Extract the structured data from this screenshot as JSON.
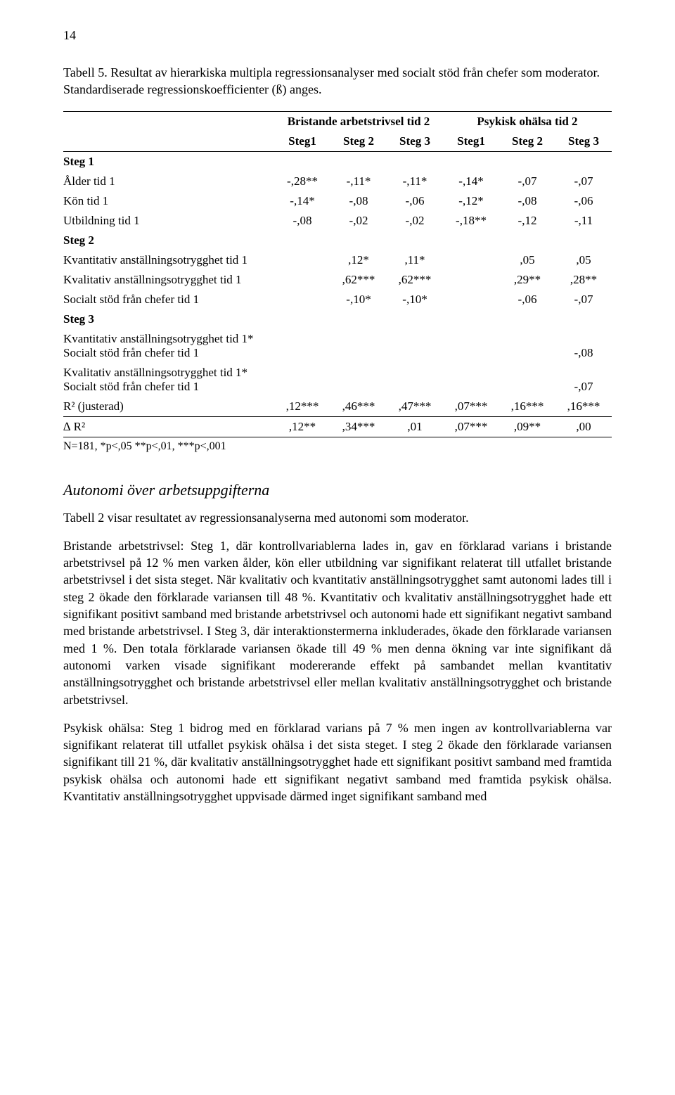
{
  "page_number": "14",
  "caption": "Tabell 5. Resultat av hierarkiska multipla regressionsanalyser med socialt stöd från chefer som moderator. Standardiserade regressionskoefficienter (ß) anges.",
  "group_headers": {
    "left": "Bristande arbetstrivsel tid 2",
    "right": "Psykisk ohälsa tid 2"
  },
  "col_headers": [
    "Steg1",
    "Steg 2",
    "Steg 3",
    "Steg1",
    "Steg 2",
    "Steg 3"
  ],
  "step1_label": "Steg 1",
  "rows_step1": [
    {
      "label": "Ålder tid 1",
      "v": [
        "-,28**",
        "-,11*",
        "-,11*",
        "-,14*",
        "-,07",
        "-,07"
      ]
    },
    {
      "label": "Kön tid 1",
      "v": [
        "-,14*",
        "-,08",
        "-,06",
        "-,12*",
        "-,08",
        "-,06"
      ]
    },
    {
      "label": "Utbildning tid 1",
      "v": [
        "-,08",
        "-,02",
        "-,02",
        "-,18**",
        "-,12",
        "-,11"
      ]
    }
  ],
  "step2_label": "Steg 2",
  "rows_step2": [
    {
      "label": "Kvantitativ anställningsotrygghet tid 1",
      "v": [
        "",
        ",12*",
        ",11*",
        "",
        ",05",
        ",05"
      ]
    },
    {
      "label": "Kvalitativ anställningsotrygghet tid 1",
      "v": [
        "",
        ",62***",
        ",62***",
        "",
        ",29**",
        ",28**"
      ]
    },
    {
      "label": "Socialt stöd från chefer tid 1",
      "v": [
        "",
        "-,10*",
        "-,10*",
        "",
        "-,06",
        "-,07"
      ]
    }
  ],
  "step3_label": "Steg 3",
  "rows_step3": [
    {
      "label": "Kvantitativ anställningsotrygghet tid 1* Socialt stöd från chefer tid 1",
      "v": [
        "",
        "",
        "",
        "",
        "",
        "-,08"
      ]
    },
    {
      "label": "Kvalitativ anställningsotrygghet tid 1* Socialt stöd från chefer tid 1",
      "v": [
        "",
        "",
        "",
        "",
        "",
        "-,07"
      ]
    }
  ],
  "rows_fit": [
    {
      "label": "R² (justerad)",
      "v": [
        ",12***",
        ",46***",
        ",47***",
        ",07***",
        ",16***",
        ",16***"
      ]
    },
    {
      "label": "∆ R²",
      "v": [
        ",12**",
        ",34***",
        ",01",
        ",07***",
        ",09**",
        ",00"
      ]
    }
  ],
  "table_note": "N=181, *p<,05 **p<,01, ***p<,001",
  "section_heading": "Autonomi över arbetsuppgifterna",
  "para1": "Tabell 2 visar resultatet av regressionsanalyserna med autonomi som moderator.",
  "para2": "Bristande arbetstrivsel: Steg 1, där kontrollvariablerna lades in, gav en förklarad varians i bristande arbetstrivsel på 12 % men varken ålder, kön eller utbildning var signifikant relaterat till utfallet bristande arbetstrivsel i det sista steget. När kvalitativ och kvantitativ anställningsotrygghet samt autonomi lades till i steg 2 ökade den förklarade variansen till 48 %. Kvantitativ och kvalitativ anställningsotrygghet hade ett signifikant positivt samband med bristande arbetstrivsel och autonomi hade ett signifikant negativt samband med bristande arbetstrivsel. I Steg 3, där interaktionstermerna inkluderades, ökade den förklarade variansen med 1 %. Den totala förklarade variansen ökade till 49 % men denna ökning var inte signifikant då autonomi varken visade signifikant modererande effekt på sambandet mellan kvantitativ anställningsotrygghet och bristande arbetstrivsel eller mellan kvalitativ anställningsotrygghet och bristande arbetstrivsel.",
  "para3": "Psykisk ohälsa: Steg 1 bidrog med en förklarad varians på 7 % men ingen av kontrollvariablerna var signifikant relaterat till utfallet psykisk ohälsa i det sista steget. I steg 2 ökade den förklarade variansen signifikant till 21 %, där kvalitativ anställningsotrygghet hade ett signifikant positivt samband med framtida psykisk ohälsa och autonomi hade ett signifikant negativt samband med framtida psykisk ohälsa. Kvantitativ anställningsotrygghet uppvisade därmed inget signifikant samband med"
}
